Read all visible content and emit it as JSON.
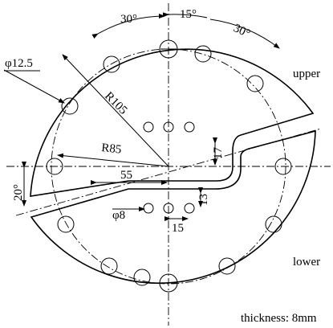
{
  "labels": {
    "angle_left": "30°",
    "angle_mid": "15°",
    "angle_right": "30°",
    "hole_diameter": "φ12.5",
    "upper": "upper",
    "outer_radius": "R105",
    "hole_radius": "R85",
    "offset_upper": "17",
    "length": "55",
    "slot_angle": "20°",
    "offset_lower": "13",
    "small_hole": "φ8",
    "small_pitch": "15",
    "lower": "lower",
    "thickness": "thickness: 8mm"
  }
}
